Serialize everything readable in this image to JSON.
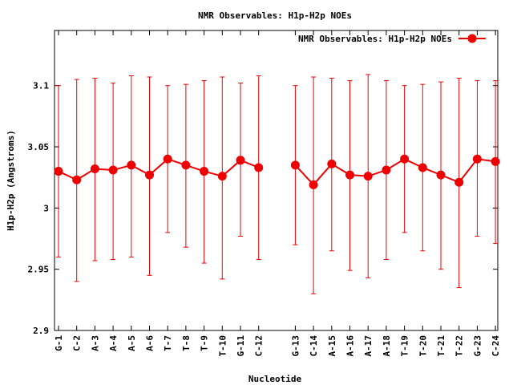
{
  "chart_data": {
    "type": "line",
    "title": "NMR Observables: H1p-H2p NOEs",
    "xlabel": "Nucleotide",
    "ylabel": "H1p-H2p (Angstroms)",
    "ylim": [
      2.9,
      3.145
    ],
    "yticks": [
      2.9,
      2.95,
      3,
      3.05,
      3.1
    ],
    "ytick_labels": [
      "2.9",
      "2.95",
      "3",
      "3.05",
      "3.1"
    ],
    "grid": false,
    "legend_position": "top-right",
    "categories": [
      "G-1",
      "C-2",
      "A-3",
      "A-4",
      "A-5",
      "A-6",
      "T-7",
      "T-8",
      "T-9",
      "T-10",
      "G-11",
      "C-12",
      "G-13",
      "C-14",
      "A-15",
      "A-16",
      "A-17",
      "A-18",
      "T-19",
      "T-20",
      "T-21",
      "T-22",
      "G-23",
      "C-24"
    ],
    "series": [
      {
        "name": "NMR Observables: H1p-H2p NOEs",
        "color": "#ee0000",
        "segments": [
          [
            0,
            11
          ],
          [
            12,
            23
          ]
        ],
        "values": [
          3.03,
          3.023,
          3.032,
          3.031,
          3.035,
          3.027,
          3.04,
          3.035,
          3.03,
          3.026,
          3.039,
          3.033,
          3.035,
          3.019,
          3.036,
          3.027,
          3.026,
          3.031,
          3.04,
          3.033,
          3.027,
          3.021,
          3.04,
          3.038
        ],
        "err_low": [
          2.96,
          2.94,
          2.957,
          2.958,
          2.96,
          2.945,
          2.98,
          2.968,
          2.955,
          2.942,
          2.977,
          2.958,
          2.97,
          2.93,
          2.965,
          2.949,
          2.943,
          2.958,
          2.98,
          2.965,
          2.95,
          2.935,
          2.977,
          2.971
        ],
        "err_high": [
          3.1,
          3.105,
          3.106,
          3.102,
          3.108,
          3.107,
          3.1,
          3.101,
          3.104,
          3.107,
          3.102,
          3.108,
          3.1,
          3.107,
          3.106,
          3.104,
          3.109,
          3.104,
          3.1,
          3.101,
          3.103,
          3.106,
          3.104,
          3.104
        ]
      }
    ]
  }
}
